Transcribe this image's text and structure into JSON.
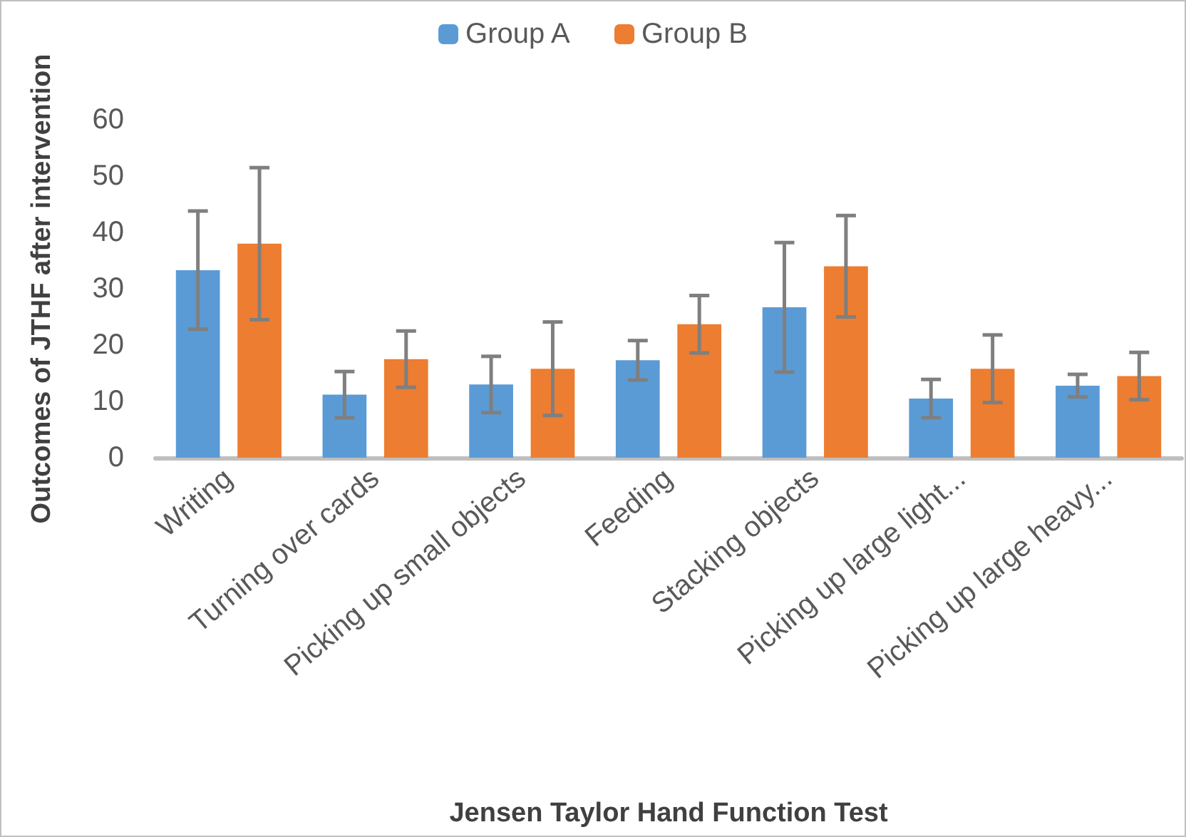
{
  "chart_data": {
    "type": "bar",
    "xlabel": "Jensen Taylor Hand Function Test",
    "ylabel": "Outcomes of JTHF after intervention",
    "categories": [
      "Writing",
      "Turning over cards",
      "Picking up small objects",
      "Feeding",
      "Stacking objects",
      "Picking up large light...",
      "Picking up large heavy..."
    ],
    "series": [
      {
        "name": "Group A",
        "color": "#5b9bd5",
        "values": [
          33.3,
          11.2,
          13,
          17.3,
          26.7,
          10.5,
          12.8
        ],
        "errors": [
          10.5,
          4.1,
          5,
          3.5,
          11.5,
          3.4,
          2
        ]
      },
      {
        "name": "Group B",
        "color": "#ed7d31",
        "values": [
          38,
          17.5,
          15.8,
          23.7,
          34,
          15.8,
          14.5
        ],
        "errors": [
          13.5,
          5,
          8.3,
          5.1,
          9,
          6,
          4.2
        ]
      }
    ],
    "ylim": [
      0,
      60
    ],
    "yticks": [
      0,
      10,
      20,
      30,
      40,
      50,
      60
    ],
    "grid": false,
    "legend": "top"
  }
}
